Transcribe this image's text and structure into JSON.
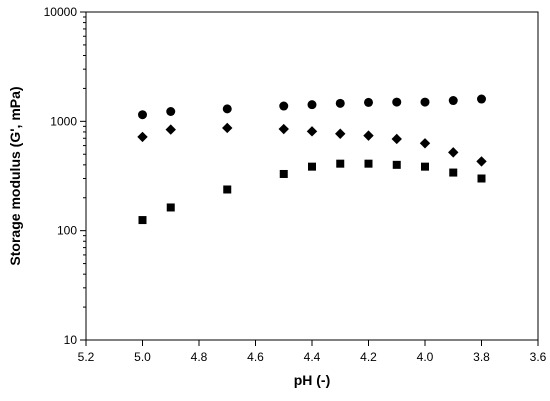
{
  "chart_data": {
    "type": "scatter",
    "xlabel": "pH (-)",
    "ylabel": "Storage modulus (G', mPa)",
    "xlim": [
      5.2,
      3.6
    ],
    "x_reversed": true,
    "ylim": [
      10,
      10000
    ],
    "y_scale": "log",
    "grid": false,
    "legend": "none",
    "x_ticks": [
      "5.2",
      "5.0",
      "4.8",
      "4.6",
      "4.4",
      "4.2",
      "4.0",
      "3.8",
      "3.6"
    ],
    "y_ticks": [
      "10",
      "100",
      "1000",
      "10000"
    ],
    "series": [
      {
        "marker": "circle",
        "color": "#000000",
        "x": [
          5.0,
          4.9,
          4.7,
          4.5,
          4.4,
          4.3,
          4.2,
          4.1,
          4.0,
          3.9,
          3.8
        ],
        "y": [
          1150,
          1230,
          1300,
          1380,
          1420,
          1460,
          1490,
          1500,
          1500,
          1550,
          1600
        ]
      },
      {
        "marker": "diamond",
        "color": "#000000",
        "x": [
          5.0,
          4.9,
          4.7,
          4.5,
          4.4,
          4.3,
          4.2,
          4.1,
          4.0,
          3.9,
          3.8
        ],
        "y": [
          720,
          840,
          870,
          850,
          810,
          770,
          740,
          690,
          630,
          520,
          430
        ]
      },
      {
        "marker": "square",
        "color": "#000000",
        "x": [
          5.0,
          4.9,
          4.7,
          4.5,
          4.4,
          4.3,
          4.2,
          4.1,
          4.0,
          3.9,
          3.8
        ],
        "y": [
          125,
          163,
          238,
          330,
          385,
          410,
          410,
          400,
          385,
          340,
          300
        ]
      }
    ]
  }
}
